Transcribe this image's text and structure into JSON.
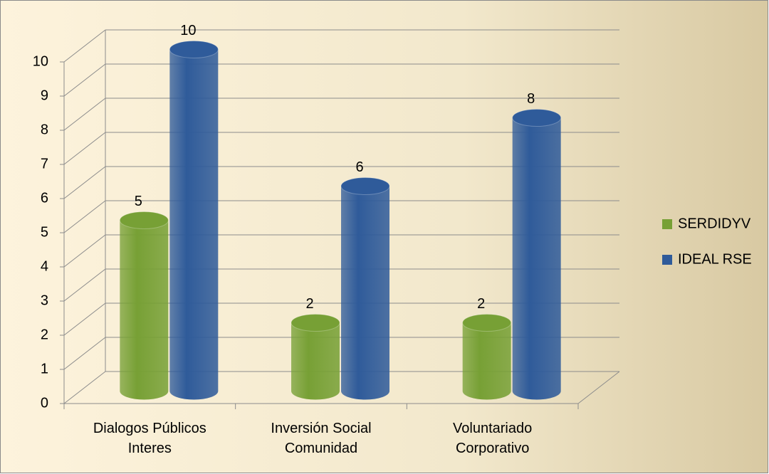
{
  "chart_data": {
    "type": "bar3d",
    "categories": [
      "Dialogos Públicos Interes",
      "Inversión Social Comunidad",
      "Voluntariado Corporativo"
    ],
    "series": [
      {
        "name": "SERDIDYV",
        "color": "#77a035",
        "values": [
          5,
          2,
          2
        ]
      },
      {
        "name": "IDEAL RSE",
        "color": "#2f5b9a",
        "values": [
          10,
          6,
          8
        ]
      }
    ],
    "ylim": [
      0,
      10
    ],
    "yticks": [
      0,
      1,
      2,
      3,
      4,
      5,
      6,
      7,
      8,
      9,
      10
    ],
    "grid": true,
    "legend": "right"
  }
}
